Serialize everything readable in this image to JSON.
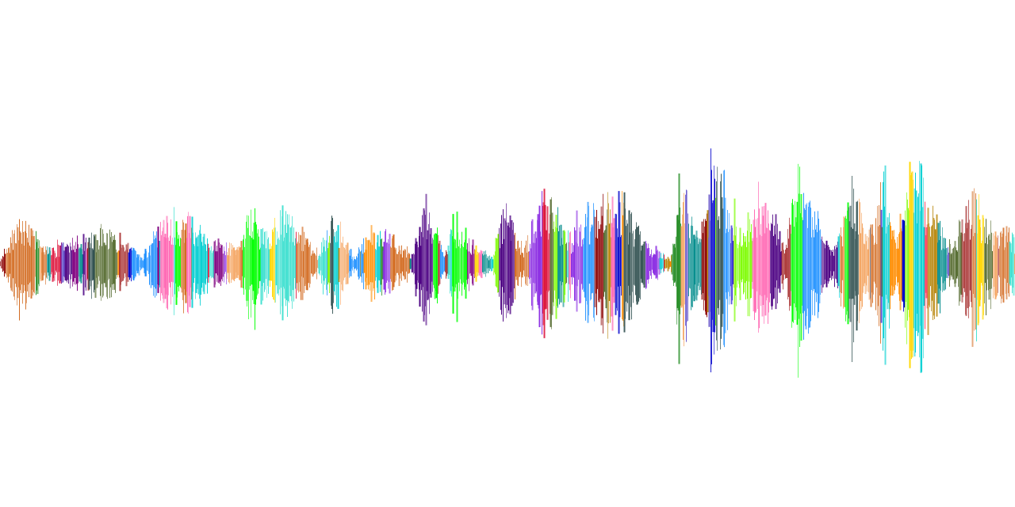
{
  "illustration": {
    "subject": "waveform",
    "background_color": "#ffffff",
    "palette": [
      "#8b0000",
      "#ff3b5c",
      "#0000cc",
      "#1e90ff",
      "#00ff00",
      "#7cfc00",
      "#8a2be2",
      "#4b0082",
      "#ff8c00",
      "#ffd700",
      "#00ced1",
      "#a52a2a",
      "#ff69b4",
      "#008b8b",
      "#556b2f",
      "#800080",
      "#d2691e",
      "#40e0d0",
      "#dc143c",
      "#2f4f4f",
      "#f4a460",
      "#6a5acd",
      "#b8860b",
      "#228b22"
    ]
  }
}
